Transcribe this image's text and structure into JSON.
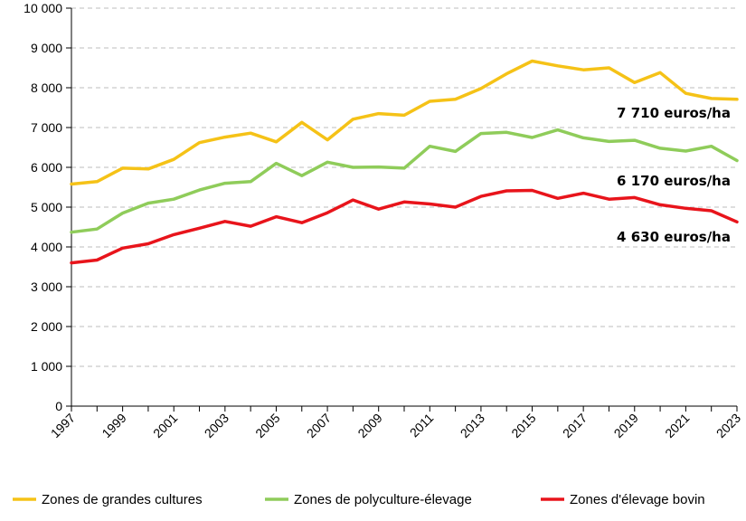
{
  "chart_data": {
    "type": "line",
    "title": "",
    "xlabel": "",
    "ylabel": "",
    "x": [
      1997,
      1998,
      1999,
      2000,
      2001,
      2002,
      2003,
      2004,
      2005,
      2006,
      2007,
      2008,
      2009,
      2010,
      2011,
      2012,
      2013,
      2014,
      2015,
      2016,
      2017,
      2018,
      2019,
      2020,
      2021,
      2022,
      2023
    ],
    "xlim": [
      1997,
      2023
    ],
    "ylim": [
      0,
      10000
    ],
    "x_tick_labels": [
      "1997",
      "1999",
      "2001",
      "2003",
      "2005",
      "2007",
      "2009",
      "2011",
      "2013",
      "2015",
      "2017",
      "2019",
      "2021",
      "2023"
    ],
    "y_ticks": [
      0,
      1000,
      2000,
      3000,
      4000,
      5000,
      6000,
      7000,
      8000,
      9000,
      10000
    ],
    "y_tick_labels": [
      "0",
      "1 000",
      "2 000",
      "3 000",
      "4 000",
      "5 000",
      "6 000",
      "7 000",
      "8 000",
      "9 000",
      "10 000"
    ],
    "grid": "horizontal dashed",
    "legend_position": "bottom",
    "series": [
      {
        "name": "Zones de grandes cultures",
        "color": "#f5c217",
        "values": [
          5580,
          5640,
          5980,
          5960,
          6200,
          6620,
          6760,
          6860,
          6640,
          7130,
          6690,
          7210,
          7350,
          7310,
          7660,
          7710,
          7980,
          8350,
          8670,
          8550,
          8450,
          8500,
          8130,
          8380,
          7860,
          7730,
          7710
        ],
        "end_label": "7 710 euros/ha"
      },
      {
        "name": "Zones de polyculture-élevage",
        "color": "#8fcc5a",
        "values": [
          4370,
          4450,
          4850,
          5100,
          5200,
          5430,
          5600,
          5640,
          6100,
          5790,
          6130,
          6000,
          6010,
          5980,
          6530,
          6400,
          6850,
          6880,
          6750,
          6940,
          6740,
          6650,
          6680,
          6480,
          6410,
          6530,
          6170
        ],
        "end_label": "6 170 euros/ha"
      },
      {
        "name": "Zones d'élevage bovin",
        "color": "#e8141b",
        "values": [
          3600,
          3670,
          3970,
          4080,
          4310,
          4470,
          4640,
          4520,
          4760,
          4610,
          4860,
          5180,
          4950,
          5130,
          5080,
          5000,
          5270,
          5410,
          5420,
          5220,
          5350,
          5200,
          5240,
          5060,
          4970,
          4910,
          4630
        ],
        "end_label": "4 630 euros/ha"
      }
    ]
  }
}
